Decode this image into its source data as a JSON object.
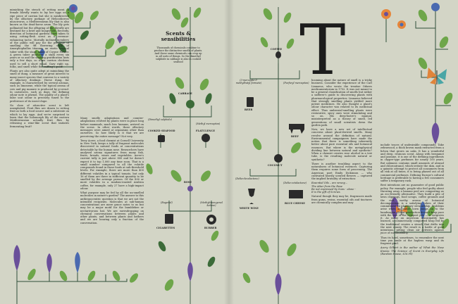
{
  "article": {
    "title_line1": "Scents &",
    "title_line2": "sensibilities",
    "intro": "Thousands of chemicals combine to produce the distinctive smells of plants. And those same chemicals can crop up in all sorts of things. So the dimethyl sulphide in cabbage is also in cooked seafood",
    "dropcap": "T"
  },
  "left_page": {
    "col1_p1": "mimicking the stench of rotting meat. A female blowfly wants to lay her eggs on a ripe piece of carrion but she is misdirected by the olfactory porkage of Helicodiceros muscivorus, a Mediterranean lily that is also known as the dead-horse arum. The lily gets pollinated but the offspring of the blowfly are destined for a brief and hungry life. Recently, direction of botanical gardens have taken to using rotting-flesh scent as a revenue-enhancing tactic. Mortally inclined members of the public will pay for the privilege of smelling the 9ft flowering stalk of Amorphophallus titanum, an exotic tropical tuber with the stage name of Corpse Flower. A green tuber produces a stalk every six years or so and the stinking gratification lasts only a few days, so when carrion chickens used to sell a short email. Gary right up, folks, and smell while the sniffing's good!",
    "col1_p2": "Plants are also quite adept at mimicking the smell of dung, a measure of great interest to many insect species that convene to a variety of olfactory dealings. Horse dung, for example, is characterised by several aromas, such as limonene, while the typical aroma of cow and pig manure is produced by p-cresol. In carnivores, such as dogs, the defining odour note is phenol. The quality of a plant's false scat odour is precisely tuned to the preference of its insect dupe.",
    "col1_p3": "No class of attractive scent is left unexploited. Fruit flies are drawn to rotting fruit as both a food source and a substrate on which to lay eggs. And we're surprised to learn that the holomorph lily of the eastern Mediterranean actually fruit flies by releasing a wine-like scent that imitates fermenting fruit?",
    "col2_p1": "Many smelly adaptations and counter-adaptations evolved by plants were in place long before mammals, much less humans, arrived on the scene. In other words, those olfactory messages were aimed at organisms other than ourselves. So how likely is it that we are perceiving the entire message? Not very.",
    "col2_p2": "Terry Acree, a food chemist at Cornell University in New York, keeps a tally of fragrant molecules discovered in natural foods at concentrations detectable by the human nose. Researchers have analysed aroma signatures from many fish, fruits, breads, wines and vegetables. Acree's current tally is just above 800 and he doesn't expect it to top 1,000 any time soon. That is a small number compared to all the volatile compounds found in those foods at sub-threshold levels. For example, there are more than 400 different volatiles in a typical tomato, but only 16 of them are there in sufficient quantity to be smelled by the average person. Of the 800 or more volatiles in a random-roasted Arabica coffee, for example, only 27 have a high-impact odour.",
    "col2_p3": "What purpose may be fed by all the un-smelled molecules in nature's garden? The answer to this anthropocentric question is that we are not the intended recipients. Molecules at sub-human concentrations are mere grace notes to us but may be a major motif for the bumblebee or nectarivorous bat. We are eavesdropping on chemical conversations between plants and other plants, and between plants and bathers and we are hearing only a fraction of the conversation.",
    "col3_p1": "include traces of undesirable compounds. Take zebrawood, a thick brown mask extracted from a lichen that grows on oaks. It has a wonderful and deep, resinous scent. Along with bergamot and jasmine, it is one of the defining ingredients in chypre-type perfumes for nearly 100 years. But oakmoss contains small amounts of atranol and chloroatranol, which irritate the skin, and in a quixotic attempt to protect all consumers from all risk at all times, it is being phased out of all commercial perfumes. Defining Europe's cultural heritage is preferable to having a few consumers suffer a temporary rash.",
    "col3_p2": "Best intentions are no guarantee of good public policy. For example, people who feel guilty about throwing away a banana peel are composting as an eco-friendly alternative. They build a pile of lawn clippings, food scraps, coffee grounds and the rich, earthy aroma of botanical decomposition is a satisfying token of their commitment to planetary stewardship. Problems arise when an entire town jumps on to the bandwagon. Odour production doesn't keep pace with the size of the compost pile — it outgrows it. As many an American municipality has learned, a commercially composted heap fed by the traditional creates a stench that drifts into the next county. The result is a battle of good intentions, pitting clean air activists against juice of sustainability.",
    "col3_p3": "Thus its hard, sometimes, to remember the next time you smile at the hapless wasp and its fragrant grail.",
    "footer_text": "Avery Gilbert is the author of What the Nose Knows: The Science of Scent in Everyday Life (Random House, £16.99)"
  },
  "right_page": {
    "col1_p1": "hooming about the nature of smell is a tricky business. Consider the experience of the Carl Linnaeus, who wrote the treatise Odores medicamentorum in 1752. It was not meant to be a general classification of smells but rather a sufferer's guide to discovering plants with pharmacological properties. Linnaeus believed that strongly smelling plants yielded more potent medicines. He also thought a plant's odour character was related to its medicinal effect. Thus ambrosial-smelling plants were restorative, spicy ones were stimulating and so on. His deep-lustre's manual, misinterpreted as a theory of smell, led generations of small scientists down the garden path.",
    "col1_p2": "Now, we have a new set of intellectual concerns about plant-derived smells. Many revolve around the definition of natural. Environmental campaigners have made the notion that there is something inherently better about pure essential oils and botanical essences. But where is the metaphysical dividing line between natural and synthetic? When a chemist creates rose alcohol in a test tube, is the resulting molecule natural or synthetic?",
    "col1_p3": "There is another troubling aspect to the naturalness of botanical essences. Capturing them requires some form of processing. The American poet Emily Dickinson — who cultivated heavily scented flowers — captured the implied brutality of extraction:",
    "poem1": "Essential Oils – are wrung –",
    "poem2": "The Attar from the Rose",
    "poem3": "Be not expressed by Suns - alone -",
    "poem4": "It is the gift of Screws.",
    "col1_p4": "Natural though they may be, fragrances made from gums, resins, essential oils and tinctures are chemically complex and may"
  },
  "molecules": {
    "cabbage": "CABBAGE",
    "seafood": "COOKED SEAFOOD",
    "flatulence": "FLATULENCE",
    "dimethyl": "(Dimethyl sulphide)",
    "methyl": "(Methyl mercaptan)",
    "rose": "ROSE",
    "cigarettes": "CIGARETTES",
    "rubber": "RUBBER",
    "eugenol": "(Eugenol)",
    "methylisoeugenol": "(Methylisoeugenol ketone)",
    "coffee": "COFFEE",
    "beer": "BEER",
    "beef": "BEEF",
    "thiol": "(3-mercapto-3-methylbutyl formate)",
    "furfuryl": "(Furfuryl mercaptan)",
    "coconut": "COCONUT",
    "white_wine": "WHITE WINE",
    "blue_cheese": "BLUE CHEESE",
    "delta_decalactone": "(Delta-decalactone)",
    "delta_octalactone": "(Delta-octalactone)"
  },
  "colors": {
    "background": "#d3d5c6",
    "stem": "#2f4f39",
    "leaf_green": "#6ea64a",
    "leaf_dark": "#3c6b39",
    "flower_purple": "#6a4f9a",
    "flower_blue": "#4a6ab0",
    "butterfly_orange": "#e0843a",
    "butterfly_teal": "#4aa6a6",
    "flower_orange": "#e6863a"
  }
}
